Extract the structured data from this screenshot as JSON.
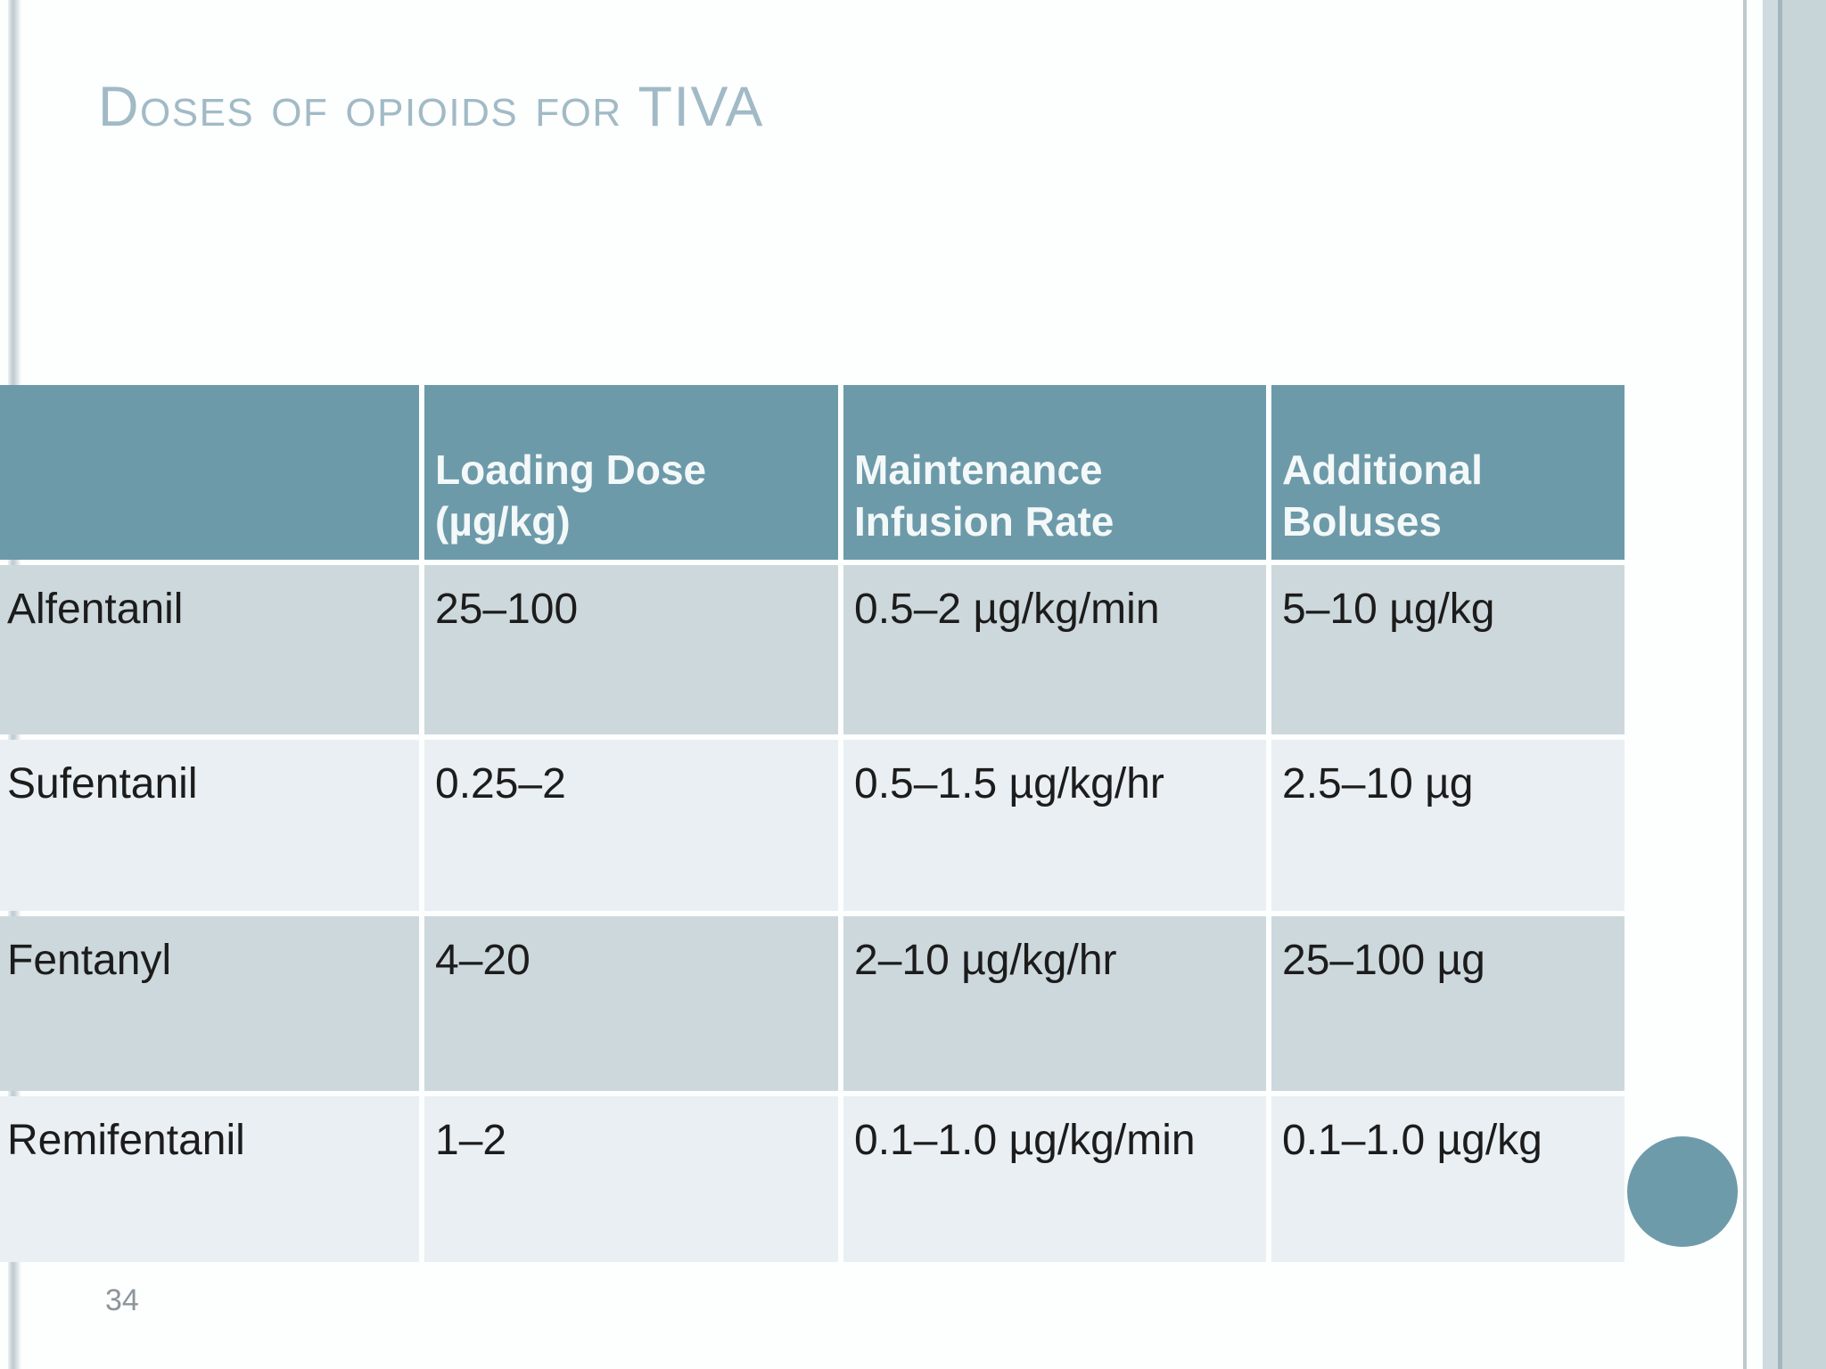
{
  "slide": {
    "title": "Doses of opioids for TIVA",
    "page_number": "34"
  },
  "table": {
    "columns": [
      "",
      "Loading Dose (µg/kg)",
      "Maintenance Infusion Rate",
      "Additional Boluses"
    ],
    "rows": [
      {
        "drug": "Alfentanil",
        "loading_dose": "25–100",
        "maintenance_infusion_rate": "0.5–2 µg/kg/min",
        "additional_boluses": "5–10 µg/kg"
      },
      {
        "drug": "Sufentanil",
        "loading_dose": "0.25–2",
        "maintenance_infusion_rate": "0.5–1.5 µg/kg/hr",
        "additional_boluses": "2.5–10 µg"
      },
      {
        "drug": "Fentanyl",
        "loading_dose": "4–20",
        "maintenance_infusion_rate": "2–10 µg/kg/hr",
        "additional_boluses": "25–100 µg"
      },
      {
        "drug": "Remifentanil",
        "loading_dose": "1–2",
        "maintenance_infusion_rate": "0.1–1.0 µg/kg/min",
        "additional_boluses": "0.1–1.0 µg/kg"
      }
    ]
  },
  "colors": {
    "bg": "#fdfefe",
    "header_teal": "#6d9aa9",
    "row_dark": "#cdd8dc",
    "row_light": "#e9eff3",
    "title_color": "#a1bac6",
    "text": "#1c1c1c",
    "band": "#c7d5d9",
    "circle": "#6e9baa"
  }
}
